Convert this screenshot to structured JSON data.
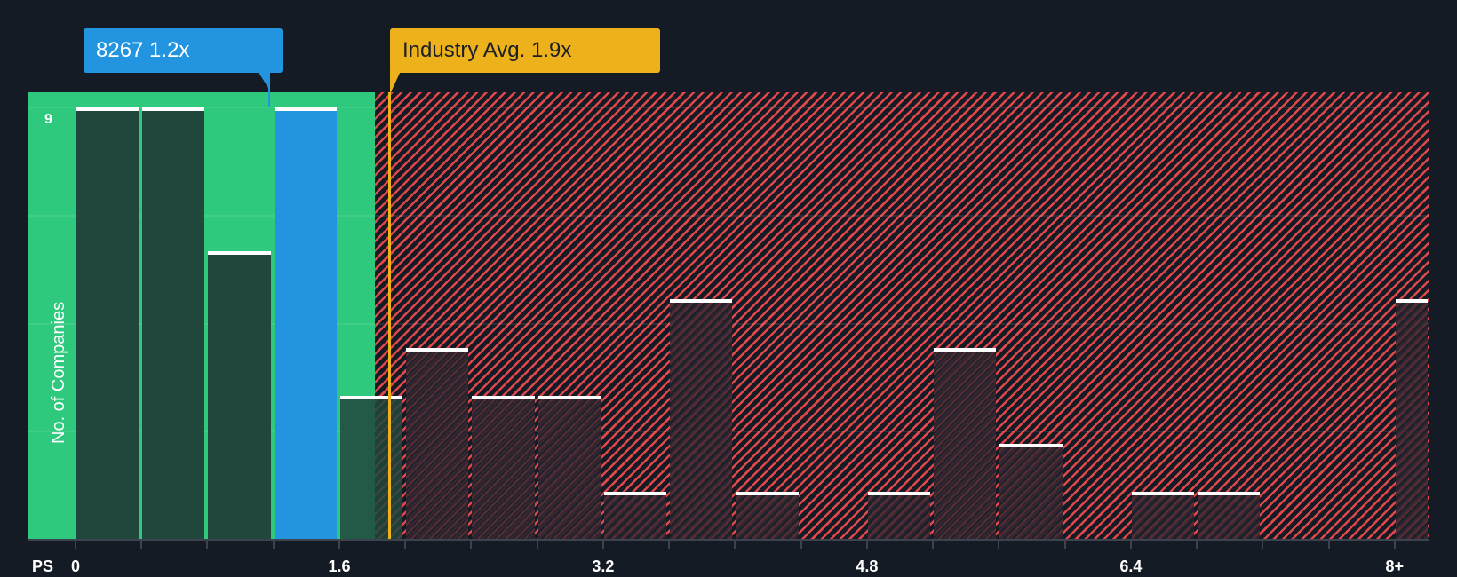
{
  "chart_data": {
    "type": "bar",
    "title": "",
    "xlabel": "PS",
    "ylabel": "No. of Companies",
    "x_tick_labels": [
      "0",
      "1.6",
      "3.2",
      "4.8",
      "6.4",
      "8+"
    ],
    "y_tick_labels": [
      "9"
    ],
    "ylim": [
      0,
      9
    ],
    "grid": true,
    "bin_width": 0.4,
    "categories": [
      "0-0.4",
      "0.4-0.8",
      "0.8-1.2",
      "1.2-1.6",
      "1.6-2.0",
      "2.0-2.4",
      "2.4-2.8",
      "2.8-3.2",
      "3.2-3.6",
      "3.6-4.0",
      "4.0-4.4",
      "4.4-4.8",
      "4.8-5.2",
      "5.2-5.6",
      "5.6-6.0",
      "6.0-6.4",
      "6.4-6.8",
      "6.8-7.2",
      "7.2-7.6",
      "7.6-8.0",
      "8+"
    ],
    "values": [
      9,
      9,
      6,
      9,
      3,
      4,
      3,
      3,
      1,
      5,
      1,
      0,
      1,
      4,
      2,
      0,
      1,
      1,
      0,
      0,
      5
    ],
    "highlight_index": 3,
    "annotations": [
      {
        "label": "8267 1.2x",
        "value": 1.2,
        "color": "#2394e0"
      },
      {
        "label": "Industry Avg. 1.9x",
        "value": 1.9,
        "color": "#edb21b"
      }
    ],
    "zones": {
      "undervalued_color": "#2ec97d",
      "overvalued_color": "#e0474a"
    }
  },
  "labels": {
    "company_callout": "8267 1.2x",
    "industry_callout": "Industry Avg. 1.9x",
    "x_axis_name": "PS",
    "y_axis_name": "No. of Companies",
    "y_max_tick": "9",
    "x_ticks": [
      "0",
      "1.6",
      "3.2",
      "4.8",
      "6.4",
      "8+"
    ]
  }
}
